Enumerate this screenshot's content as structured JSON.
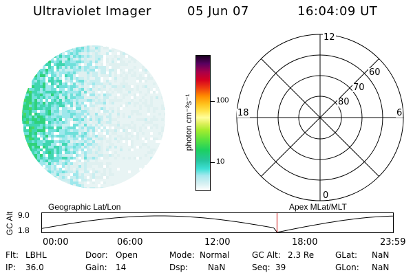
{
  "header": {
    "instrument": "Ultraviolet Imager",
    "date": "05 Jun 07",
    "time": "16:04:09 UT"
  },
  "colorbar": {
    "axis_label": "photon cm⁻²s⁻¹",
    "tick_labels": [
      "100",
      "10"
    ]
  },
  "polar": {
    "mlt_labels": {
      "top": "12",
      "left": "18",
      "right": "6",
      "bottom": "0"
    },
    "mlat_labels": [
      "60",
      "70",
      "80"
    ]
  },
  "timeline": {
    "left_label": "Geographic Lat/Lon",
    "right_label": "Apex  MLat/MLT",
    "gc_axis_title": "GC Alt",
    "gc_max": "9.0",
    "gc_min": "1.8",
    "time_ticks": [
      "00:00",
      "06:00",
      "12:00",
      "18:00",
      "23:59"
    ],
    "current_time_fraction": 0.6695,
    "colors": {
      "curve": "#000000",
      "marker": "#cc0000"
    }
  },
  "status": {
    "flt_label": "Flt:",
    "flt_value": "LBHL",
    "ip_label": "IP:",
    "ip_value": "36.0",
    "door_label": "Door:",
    "door_value": "Open",
    "gain_label": "Gain:",
    "gain_value": "14",
    "mode_label": "Mode:",
    "mode_value": "Normal",
    "dsp_label": "Dsp:",
    "dsp_value": "NaN",
    "gcalt_label": "GC Alt:",
    "gcalt_value": "2.3 Re",
    "seq_label": "Seq:",
    "seq_value": "39",
    "glat_label": "GLat:",
    "glat_value": "NaN",
    "glon_label": "GLon:",
    "glon_value": "NaN"
  },
  "colors": {
    "earth_low": "#e8f4f4",
    "earth_mid": "#9ee8ec",
    "earth_high": "#2fd27a"
  }
}
